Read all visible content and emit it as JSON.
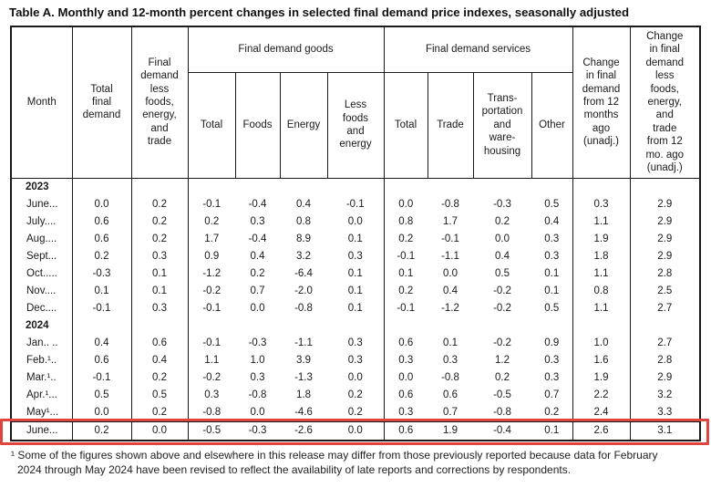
{
  "title": "Table A. Monthly and 12-month percent changes in selected final demand price indexes, seasonally adjusted",
  "colors": {
    "text": "#1a1a1a",
    "table_border": "#1a1a1a",
    "highlight_border": "#de453e",
    "background": "#ffffff"
  },
  "table": {
    "header": {
      "month": "Month",
      "total_final_demand": "Total\nfinal\ndemand",
      "less_fet": "Final\ndemand\nless\nfoods,\nenergy,\nand\ntrade",
      "goods_group": "Final demand goods",
      "goods_cols": [
        "Total",
        "Foods",
        "Energy",
        "Less\nfoods\nand\nenergy"
      ],
      "services_group": "Final demand services",
      "services_cols": [
        "Total",
        "Trade",
        "Trans-\nportation\nand\nware-\nhousing",
        "Other"
      ],
      "change_12mo": "Change\nin final\ndemand\nfrom 12\nmonths\nago\n(unadj.)",
      "change_less": "Change\nin final\ndemand\nless\nfoods,\nenergy,\nand\ntrade\nfrom 12\nmo. ago\n(unadj.)"
    },
    "rows": [
      {
        "type": "year",
        "label": "2023"
      },
      {
        "type": "data",
        "label": "June...",
        "values": [
          "0.0",
          "0.2",
          "-0.1",
          "-0.4",
          "0.4",
          "-0.1",
          "0.0",
          "-0.8",
          "-0.3",
          "0.5",
          "0.3",
          "2.9"
        ]
      },
      {
        "type": "data",
        "label": "July....",
        "values": [
          "0.6",
          "0.2",
          "0.2",
          "0.3",
          "0.8",
          "0.0",
          "0.8",
          "1.7",
          "0.2",
          "0.4",
          "1.1",
          "2.9"
        ]
      },
      {
        "type": "data",
        "label": "Aug....",
        "values": [
          "0.6",
          "0.2",
          "1.7",
          "-0.4",
          "8.9",
          "0.1",
          "0.2",
          "-0.1",
          "0.0",
          "0.3",
          "1.9",
          "2.9"
        ]
      },
      {
        "type": "data",
        "label": "Sept...",
        "values": [
          "0.2",
          "0.3",
          "0.9",
          "0.4",
          "3.2",
          "0.3",
          "-0.1",
          "-1.1",
          "0.4",
          "0.3",
          "1.8",
          "2.9"
        ]
      },
      {
        "type": "data",
        "label": "Oct.....",
        "values": [
          "-0.3",
          "0.1",
          "-1.2",
          "0.2",
          "-6.4",
          "0.1",
          "0.1",
          "0.0",
          "0.5",
          "0.1",
          "1.1",
          "2.8"
        ]
      },
      {
        "type": "data",
        "label": "Nov....",
        "values": [
          "0.1",
          "0.1",
          "-0.2",
          "0.7",
          "-2.0",
          "0.1",
          "0.2",
          "0.4",
          "-0.2",
          "0.1",
          "0.8",
          "2.5"
        ]
      },
      {
        "type": "data",
        "label": "Dec....",
        "values": [
          "-0.1",
          "0.3",
          "-0.1",
          "0.0",
          "-0.8",
          "0.1",
          "-0.1",
          "-1.2",
          "-0.2",
          "0.5",
          "1.1",
          "2.7"
        ]
      },
      {
        "type": "year",
        "label": "2024"
      },
      {
        "type": "data",
        "label": "Jan.. ..",
        "values": [
          "0.4",
          "0.6",
          "-0.1",
          "-0.3",
          "-1.1",
          "0.3",
          "0.6",
          "0.1",
          "-0.2",
          "0.9",
          "1.0",
          "2.7"
        ]
      },
      {
        "type": "data",
        "label": "Feb.¹..",
        "values": [
          "0.6",
          "0.4",
          "1.1",
          "1.0",
          "3.9",
          "0.3",
          "0.3",
          "0.3",
          "1.2",
          "0.3",
          "1.6",
          "2.8"
        ]
      },
      {
        "type": "data",
        "label": "Mar.¹..",
        "values": [
          "-0.1",
          "0.2",
          "-0.2",
          "0.3",
          "-1.3",
          "0.0",
          "0.0",
          "-0.8",
          "0.2",
          "0.3",
          "1.9",
          "2.9"
        ]
      },
      {
        "type": "data",
        "label": "Apr.¹...",
        "values": [
          "0.5",
          "0.5",
          "0.3",
          "-0.8",
          "1.8",
          "0.2",
          "0.6",
          "0.6",
          "-0.5",
          "0.7",
          "2.2",
          "3.2"
        ]
      },
      {
        "type": "data",
        "label": "May¹...",
        "values": [
          "0.0",
          "0.2",
          "-0.8",
          "0.0",
          "-4.6",
          "0.2",
          "0.3",
          "0.7",
          "-0.8",
          "0.2",
          "2.4",
          "3.3"
        ]
      },
      {
        "type": "data",
        "label": "June...",
        "values": [
          "0.2",
          "0.0",
          "-0.5",
          "-0.3",
          "-2.6",
          "0.0",
          "0.6",
          "1.9",
          "-0.4",
          "0.1",
          "2.6",
          "3.1"
        ],
        "highlighted": true
      }
    ]
  },
  "footnote": "¹ Some of the figures shown above and elsewhere in this release may differ from those previously reported because data for February 2024 through May 2024 have been revised to reflect the availability of late reports and corrections by respondents."
}
